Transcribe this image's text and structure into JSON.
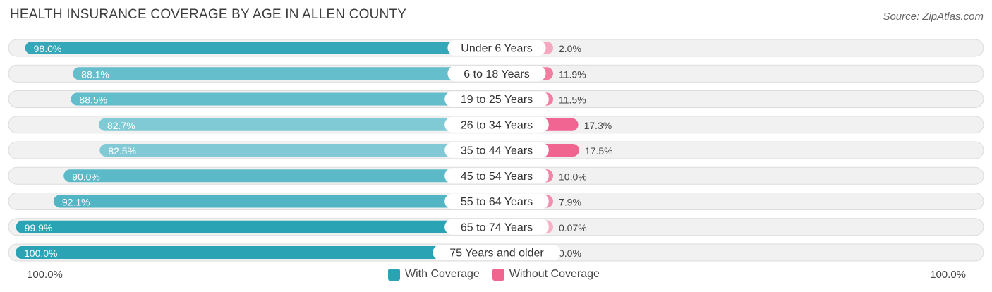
{
  "header": {
    "title": "HEALTH INSURANCE COVERAGE BY AGE IN ALLEN COUNTY",
    "source": "Source: ZipAtlas.com"
  },
  "colors": {
    "with_strong": "#2aa3b5",
    "with_light": "#8dd0da",
    "without_strong": "#f06490",
    "without_light": "#f8b0c6",
    "row_bg": "#eeeeee",
    "row_border": "#dddddd"
  },
  "chart_data": {
    "type": "bar",
    "orientation": "horizontal-diverging",
    "title": "HEALTH INSURANCE COVERAGE BY AGE IN ALLEN COUNTY",
    "categories": [
      "Under 6 Years",
      "6 to 18 Years",
      "19 to 25 Years",
      "26 to 34 Years",
      "35 to 44 Years",
      "45 to 54 Years",
      "55 to 64 Years",
      "65 to 74 Years",
      "75 Years and older"
    ],
    "series": [
      {
        "name": "With Coverage",
        "values": [
          98.0,
          88.1,
          88.5,
          82.7,
          82.5,
          90.0,
          92.1,
          99.9,
          100.0
        ],
        "labels": [
          "98.0%",
          "88.1%",
          "88.5%",
          "82.7%",
          "82.5%",
          "90.0%",
          "92.1%",
          "99.9%",
          "100.0%"
        ]
      },
      {
        "name": "Without Coverage",
        "values": [
          2.0,
          11.9,
          11.5,
          17.3,
          17.5,
          10.0,
          7.9,
          0.07,
          0.0
        ],
        "labels": [
          "2.0%",
          "11.9%",
          "11.5%",
          "17.3%",
          "17.5%",
          "10.0%",
          "7.9%",
          "0.07%",
          "0.0%"
        ]
      }
    ],
    "axis": {
      "left_label": "100.0%",
      "right_label": "100.0%",
      "range": [
        0,
        100
      ]
    },
    "legend": {
      "position": "bottom-center",
      "items": [
        "With Coverage",
        "Without Coverage"
      ]
    }
  }
}
